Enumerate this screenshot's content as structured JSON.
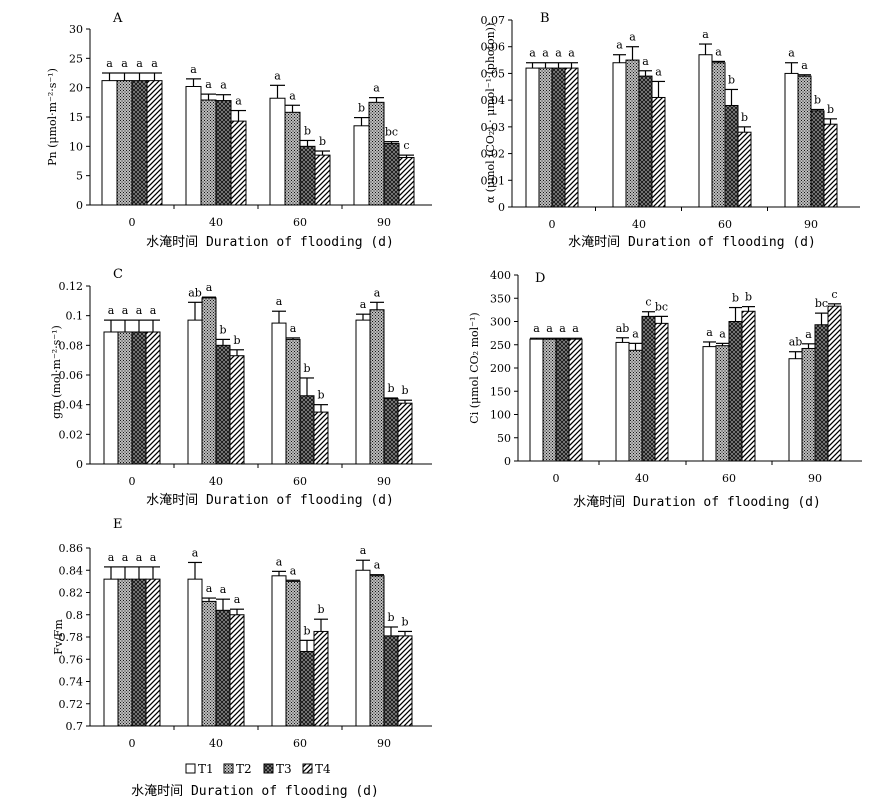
{
  "figure": {
    "xlabel": "水淹时间 Duration of flooding (d)",
    "categories": [
      "0",
      "40",
      "60",
      "90"
    ],
    "legend": [
      "T1",
      "T2",
      "T3",
      "T4"
    ]
  },
  "chart_data": [
    {
      "type": "bar",
      "panel": "A",
      "ylabel": "Pn (μmol·m⁻²·s⁻¹)",
      "xlabel": "水淹时间 Duration of flooding (d)",
      "categories": [
        "0",
        "40",
        "60",
        "90"
      ],
      "ylim": [
        0,
        30
      ],
      "yticks": [
        "0",
        "5",
        "10",
        "15",
        "20",
        "25",
        "30"
      ],
      "series": [
        {
          "name": "T1",
          "values": [
            21.2,
            20.2,
            18.2,
            13.5
          ],
          "errors": [
            1.3,
            1.3,
            2.2,
            1.4
          ],
          "letters": [
            "a",
            "a",
            "a",
            "b"
          ]
        },
        {
          "name": "T2",
          "values": [
            21.2,
            17.9,
            15.8,
            17.5
          ],
          "errors": [
            1.3,
            1.0,
            1.2,
            0.8
          ],
          "letters": [
            "a",
            "a",
            "a",
            "a"
          ]
        },
        {
          "name": "T3",
          "values": [
            21.2,
            17.8,
            10.0,
            10.5
          ],
          "errors": [
            1.3,
            1.0,
            1.0,
            0.3
          ],
          "letters": [
            "a",
            "a",
            "b",
            "bc"
          ]
        },
        {
          "name": "T4",
          "values": [
            21.2,
            14.3,
            8.5,
            8.1
          ],
          "errors": [
            1.3,
            1.8,
            0.7,
            0.4
          ],
          "letters": [
            "a",
            "a",
            "b",
            "c"
          ]
        }
      ]
    },
    {
      "type": "bar",
      "panel": "B",
      "ylabel": "α (μmol (CO₂) · μmol⁻¹ (photon))",
      "xlabel": "水淹时间 Duration of flooding (d)",
      "categories": [
        "0",
        "40",
        "60",
        "90"
      ],
      "ylim": [
        0,
        0.07
      ],
      "yticks": [
        "0",
        "0.01",
        "0.02",
        "0.03",
        "0.04",
        "0.05",
        "0.06",
        "0.07"
      ],
      "series": [
        {
          "name": "T1",
          "values": [
            0.052,
            0.054,
            0.057,
            0.05
          ],
          "errors": [
            0.002,
            0.003,
            0.004,
            0.004
          ],
          "letters": [
            "a",
            "a",
            "a",
            "a"
          ]
        },
        {
          "name": "T2",
          "values": [
            0.052,
            0.055,
            0.054,
            0.049
          ],
          "errors": [
            0.002,
            0.005,
            0.0005,
            0.0005
          ],
          "letters": [
            "a",
            "a",
            "a",
            "a"
          ]
        },
        {
          "name": "T3",
          "values": [
            0.052,
            0.049,
            0.038,
            0.036
          ],
          "errors": [
            0.002,
            0.002,
            0.006,
            0.0005
          ],
          "letters": [
            "a",
            "a",
            "b",
            "b"
          ]
        },
        {
          "name": "T4",
          "values": [
            0.052,
            0.041,
            0.028,
            0.031
          ],
          "errors": [
            0.002,
            0.006,
            0.002,
            0.002
          ],
          "letters": [
            "a",
            "a",
            "b",
            "b"
          ]
        }
      ]
    },
    {
      "type": "bar",
      "panel": "C",
      "ylabel": "gm (mol·m⁻²·s⁻¹)",
      "xlabel": "水淹时间 Duration of flooding (d)",
      "categories": [
        "0",
        "40",
        "60",
        "90"
      ],
      "ylim": [
        0,
        0.12
      ],
      "yticks": [
        "0",
        "0.02",
        "0.04",
        "0.06",
        "0.08",
        "0.1",
        "0.12"
      ],
      "series": [
        {
          "name": "T1",
          "values": [
            0.089,
            0.097,
            0.095,
            0.097
          ],
          "errors": [
            0.008,
            0.012,
            0.008,
            0.004
          ],
          "letters": [
            "a",
            "ab",
            "a",
            "a"
          ]
        },
        {
          "name": "T2",
          "values": [
            0.089,
            0.112,
            0.084,
            0.104
          ],
          "errors": [
            0.008,
            0.0005,
            0.001,
            0.005
          ],
          "letters": [
            "a",
            "a",
            "a",
            "a"
          ]
        },
        {
          "name": "T3",
          "values": [
            0.089,
            0.08,
            0.046,
            0.044
          ],
          "errors": [
            0.008,
            0.004,
            0.012,
            0.0005
          ],
          "letters": [
            "a",
            "b",
            "b",
            "b"
          ]
        },
        {
          "name": "T4",
          "values": [
            0.089,
            0.073,
            0.035,
            0.041
          ],
          "errors": [
            0.008,
            0.004,
            0.005,
            0.002
          ],
          "letters": [
            "a",
            "b",
            "b",
            "b"
          ]
        }
      ]
    },
    {
      "type": "bar",
      "panel": "D",
      "ylabel": "Ci (μmol CO₂ mol⁻¹)",
      "xlabel": "水淹时间 Duration of flooding (d)",
      "categories": [
        "0",
        "40",
        "60",
        "90"
      ],
      "ylim": [
        0,
        400
      ],
      "yticks": [
        "0",
        "50",
        "100",
        "150",
        "200",
        "250",
        "300",
        "350",
        "400"
      ],
      "series": [
        {
          "name": "T1",
          "values": [
            262,
            255,
            246,
            220
          ],
          "errors": [
            2,
            10,
            10,
            15
          ],
          "letters": [
            "a",
            "ab",
            "a",
            "ab"
          ]
        },
        {
          "name": "T2",
          "values": [
            262,
            238,
            248,
            242
          ],
          "errors": [
            2,
            15,
            5,
            10
          ],
          "letters": [
            "a",
            "a",
            "a",
            "a"
          ]
        },
        {
          "name": "T3",
          "values": [
            262,
            311,
            300,
            293
          ],
          "errors": [
            2,
            10,
            30,
            25
          ],
          "letters": [
            "a",
            "c",
            "b",
            "bc"
          ]
        },
        {
          "name": "T4",
          "values": [
            262,
            296,
            322,
            333
          ],
          "errors": [
            2,
            15,
            10,
            5
          ],
          "letters": [
            "a",
            "bc",
            "b",
            "c"
          ]
        }
      ]
    },
    {
      "type": "bar",
      "panel": "E",
      "ylabel": "Fv/Fm",
      "xlabel": "水淹时间 Duration of flooding (d)",
      "categories": [
        "0",
        "40",
        "60",
        "90"
      ],
      "ylim": [
        0.7,
        0.86
      ],
      "yticks": [
        "0.7",
        "0.72",
        "0.74",
        "0.76",
        "0.78",
        "0.8",
        "0.82",
        "0.84",
        "0.86"
      ],
      "series": [
        {
          "name": "T1",
          "values": [
            0.832,
            0.832,
            0.835,
            0.84
          ],
          "errors": [
            0.011,
            0.015,
            0.004,
            0.009
          ],
          "letters": [
            "a",
            "a",
            "a",
            "a"
          ]
        },
        {
          "name": "T2",
          "values": [
            0.832,
            0.812,
            0.83,
            0.835
          ],
          "errors": [
            0.011,
            0.003,
            0.001,
            0.001
          ],
          "letters": [
            "a",
            "a",
            "a",
            "a"
          ]
        },
        {
          "name": "T3",
          "values": [
            0.832,
            0.804,
            0.767,
            0.781
          ],
          "errors": [
            0.011,
            0.01,
            0.01,
            0.008
          ],
          "letters": [
            "a",
            "a",
            "b",
            "b"
          ]
        },
        {
          "name": "T4",
          "values": [
            0.832,
            0.8,
            0.785,
            0.781
          ],
          "errors": [
            0.011,
            0.005,
            0.011,
            0.004
          ],
          "letters": [
            "a",
            "a",
            "b",
            "b"
          ]
        }
      ]
    }
  ]
}
